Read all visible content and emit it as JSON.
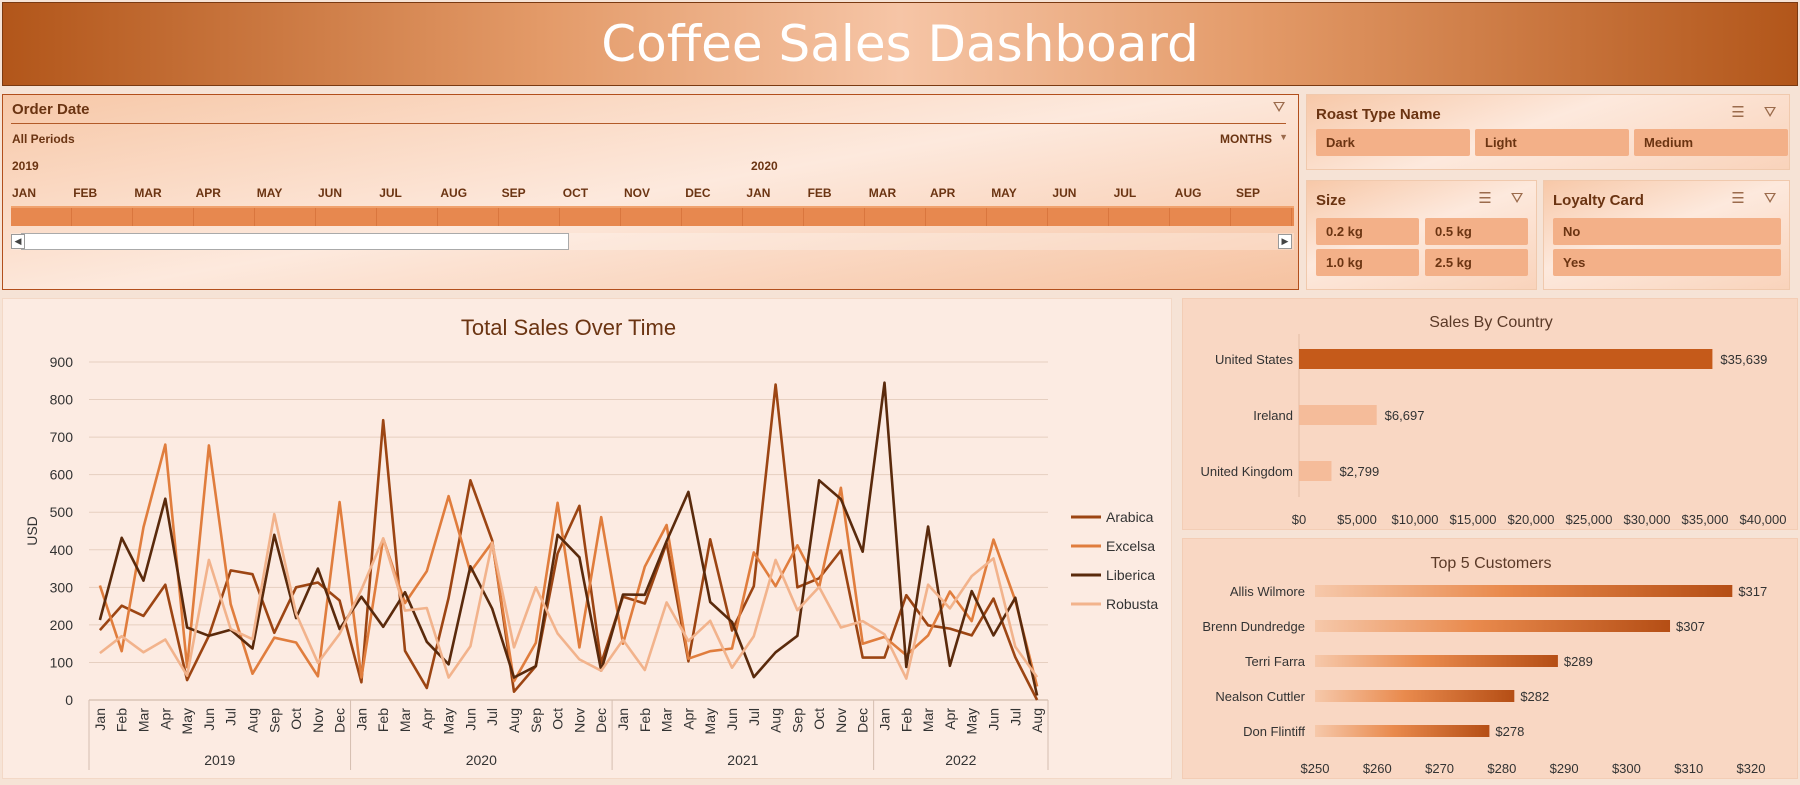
{
  "header": {
    "title": "Coffee Sales Dashboard"
  },
  "timeline": {
    "title": "Order Date",
    "period_label": "All Periods",
    "level_label": "MONTHS",
    "years": [
      "2019",
      "2020"
    ],
    "months": [
      "JAN",
      "FEB",
      "MAR",
      "APR",
      "MAY",
      "JUN",
      "JUL",
      "AUG",
      "SEP",
      "OCT",
      "NOV",
      "DEC",
      "JAN",
      "FEB",
      "MAR",
      "APR",
      "MAY",
      "JUN",
      "JUL",
      "AUG",
      "SEP"
    ]
  },
  "roast_slicer": {
    "title": "Roast Type Name",
    "items": [
      "Dark",
      "Light",
      "Medium"
    ]
  },
  "size_slicer": {
    "title": "Size",
    "items": [
      "0.2 kg",
      "0.5 kg",
      "1.0 kg",
      "2.5 kg"
    ]
  },
  "loyalty_slicer": {
    "title": "Loyalty Card",
    "items": [
      "No",
      "Yes"
    ]
  },
  "colors": {
    "arabica": "#9c4513",
    "excelsa": "#e07d3d",
    "liberica": "#5a2a0c",
    "robusta": "#f2b38c",
    "bar": "#c55a1a",
    "bar_light": "#f4b793"
  },
  "chart_data": [
    {
      "type": "line",
      "title": "Total Sales Over Time",
      "ylabel": "USD",
      "ylim": [
        0,
        900
      ],
      "yticks": [
        0,
        100,
        200,
        300,
        400,
        500,
        600,
        700,
        800,
        900
      ],
      "years": [
        "2019",
        "2020",
        "2021",
        "2022"
      ],
      "x": [
        "Jan",
        "Feb",
        "Mar",
        "Apr",
        "May",
        "Jun",
        "Jul",
        "Aug",
        "Sep",
        "Oct",
        "Nov",
        "Dec",
        "Jan",
        "Feb",
        "Mar",
        "Apr",
        "May",
        "Jun",
        "Jul",
        "Aug",
        "Sep",
        "Oct",
        "Nov",
        "Dec",
        "Jan",
        "Feb",
        "Mar",
        "Apr",
        "May",
        "Jun",
        "Jul",
        "Aug",
        "Sep",
        "Oct",
        "Nov",
        "Dec",
        "Jan",
        "Feb",
        "Mar",
        "Apr",
        "May",
        "Jun",
        "Jul",
        "Aug"
      ],
      "series": [
        {
          "name": "Arabica",
          "values": [
            186,
            251,
            224,
            307,
            53,
            171,
            345,
            335,
            179,
            300,
            313,
            265,
            47,
            745,
            131,
            32,
            272,
            585,
            425,
            22,
            90,
            390,
            517,
            98,
            275,
            257,
            418,
            103,
            428,
            185,
            303,
            840,
            300,
            324,
            398,
            113,
            113,
            279,
            199,
            190,
            172,
            270,
            114,
            0
          ]
        },
        {
          "name": "Excelsa",
          "values": [
            305,
            130,
            460,
            680,
            87,
            678,
            255,
            70,
            166,
            153,
            63,
            527,
            60,
            430,
            258,
            343,
            543,
            341,
            420,
            50,
            152,
            525,
            140,
            487,
            150,
            355,
            466,
            110,
            130,
            137,
            393,
            303,
            412,
            300,
            565,
            150,
            168,
            119,
            172,
            289,
            210,
            427,
            265,
            36
          ]
        },
        {
          "name": "Liberica",
          "values": [
            213,
            432,
            318,
            536,
            193,
            171,
            187,
            137,
            440,
            218,
            350,
            189,
            275,
            195,
            287,
            155,
            95,
            356,
            243,
            60,
            90,
            440,
            380,
            78,
            281,
            280,
            423,
            554,
            261,
            208,
            61,
            127,
            171,
            585,
            535,
            395,
            845,
            88,
            462,
            91,
            290,
            172,
            272,
            12
          ]
        },
        {
          "name": "Robusta",
          "values": [
            125,
            170,
            127,
            161,
            65,
            373,
            189,
            162,
            495,
            230,
            99,
            176,
            294,
            430,
            238,
            245,
            60,
            143,
            418,
            140,
            300,
            177,
            108,
            78,
            160,
            80,
            260,
            157,
            211,
            86,
            170,
            373,
            239,
            301,
            193,
            210,
            175,
            57,
            307,
            244,
            330,
            377,
            142,
            61
          ]
        }
      ]
    },
    {
      "type": "bar",
      "title": "Sales By Country",
      "categories": [
        "United States",
        "Ireland",
        "United Kingdom"
      ],
      "values": [
        35639,
        6697,
        2799
      ],
      "labels": [
        "$35,639",
        "$6,697",
        "$2,799"
      ],
      "xlim": [
        0,
        40000
      ],
      "xticks": [
        "$0",
        "$5,000",
        "$10,000",
        "$15,000",
        "$20,000",
        "$25,000",
        "$30,000",
        "$35,000",
        "$40,000"
      ]
    },
    {
      "type": "bar",
      "title": "Top 5 Customers",
      "categories": [
        "Allis Wilmore",
        "Brenn Dundredge",
        "Terri Farra",
        "Nealson Cuttler",
        "Don Flintiff"
      ],
      "values": [
        317,
        307,
        289,
        282,
        278
      ],
      "labels": [
        "$317",
        "$307",
        "$289",
        "$282",
        "$278"
      ],
      "xlim": [
        250,
        320
      ],
      "xticks": [
        "$250",
        "$260",
        "$270",
        "$280",
        "$290",
        "$300",
        "$310",
        "$320"
      ]
    }
  ]
}
